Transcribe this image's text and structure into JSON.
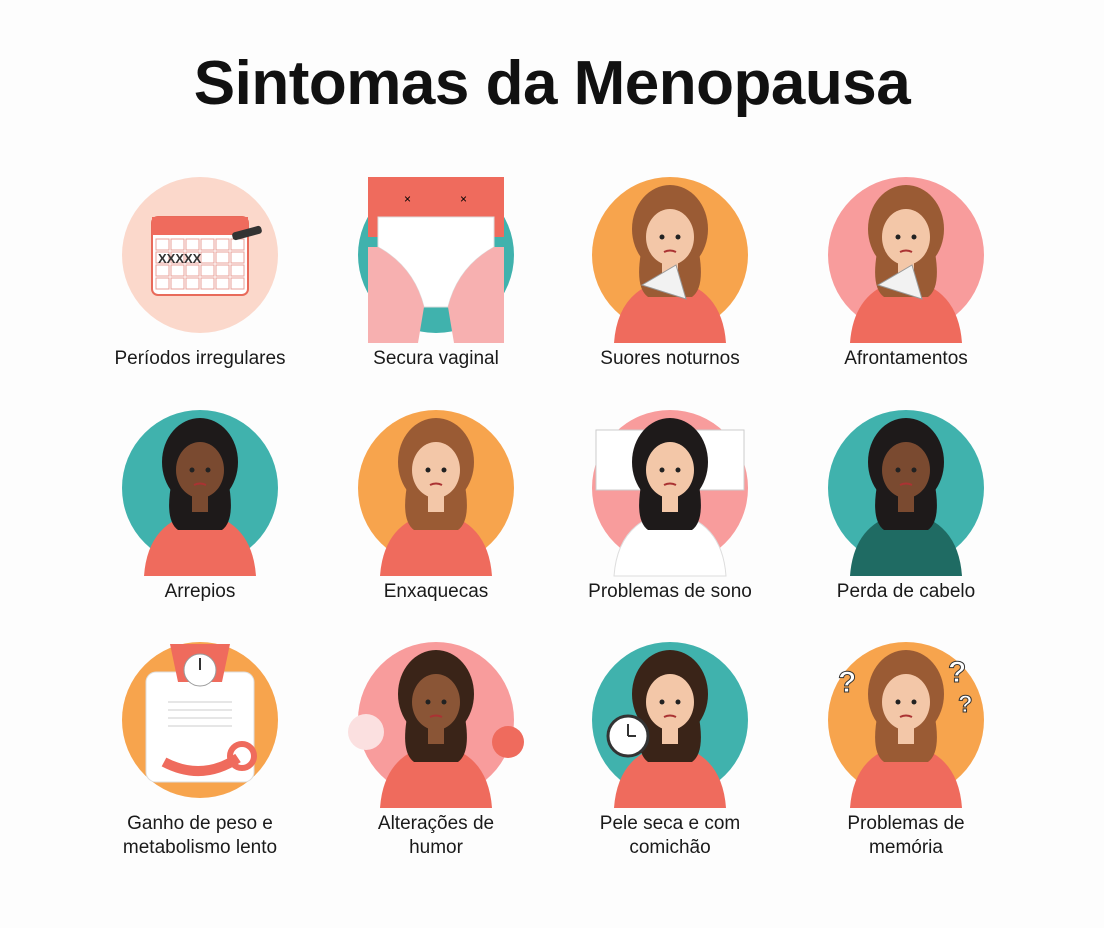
{
  "title": "Sintomas da Menopausa",
  "colors": {
    "peach": "#fbd8cb",
    "teal": "#40b2ad",
    "orange": "#f7a44d",
    "pink": "#f89c9c",
    "shirt": "#ef6b5d"
  },
  "symptoms": [
    {
      "label": "Períodos irregulares",
      "icon": "calendar-icon",
      "bg": "#fbd8cb"
    },
    {
      "label": "Secura vaginal",
      "icon": "underwear-icon",
      "bg": "#40b2ad"
    },
    {
      "label": "Suores noturnos",
      "icon": "woman-fan-icon",
      "bg": "#f7a44d"
    },
    {
      "label": "Afrontamentos",
      "icon": "woman-fan-icon",
      "bg": "#f89c9c"
    },
    {
      "label": "Arrepios",
      "icon": "woman-shivering-icon",
      "bg": "#40b2ad"
    },
    {
      "label": "Enxaquecas",
      "icon": "woman-headache-icon",
      "bg": "#f7a44d"
    },
    {
      "label": "Problemas de sono",
      "icon": "woman-bed-icon",
      "bg": "#f89c9c"
    },
    {
      "label": "Perda de cabelo",
      "icon": "woman-hair-loss-icon",
      "bg": "#40b2ad"
    },
    {
      "label": "Ganho de peso e\nmetabolismo lento",
      "icon": "scale-icon",
      "bg": "#f7a44d"
    },
    {
      "label": "Alterações de\nhumor",
      "icon": "woman-mood-icon",
      "bg": "#f89c9c"
    },
    {
      "label": "Pele seca e com\ncomichão",
      "icon": "woman-clock-icon",
      "bg": "#40b2ad"
    },
    {
      "label": "Problemas de\nmemória",
      "icon": "woman-question-icon",
      "bg": "#f7a44d"
    }
  ]
}
